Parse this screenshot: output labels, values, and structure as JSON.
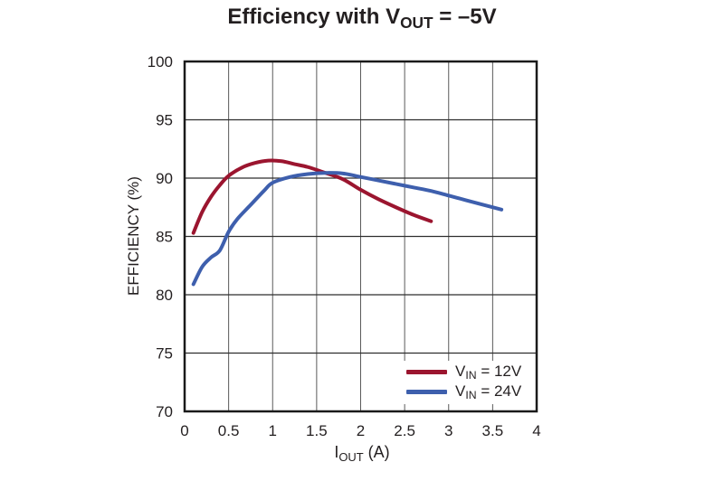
{
  "title": {
    "pre": "Efficiency with V",
    "sub": "OUT",
    "post": " = –5V"
  },
  "axes": {
    "y_label": "EFFICIENCY (%)",
    "x_label": {
      "pre": "I",
      "sub": "OUT",
      "post": " (A)"
    }
  },
  "legend": {
    "items": [
      {
        "pre": "V",
        "sub": "IN",
        "post": " = 12V",
        "color": "#9b152f"
      },
      {
        "pre": "V",
        "sub": "IN",
        "post": " = 24V",
        "color": "#3e5fad"
      }
    ]
  },
  "colors": {
    "series_12v": "#9b152f",
    "series_24v": "#3e5fad",
    "frame": "#1a1a1a",
    "grid_horizontal": "#2e2e2e",
    "grid_vertical": "#5a5a5a",
    "text": "#231f20",
    "background": "#ffffff"
  },
  "chart_data": {
    "type": "line",
    "title": "Efficiency with VOUT = –5V",
    "xlabel": "IOUT (A)",
    "ylabel": "EFFICIENCY (%)",
    "xlim": [
      0,
      4
    ],
    "ylim": [
      70,
      100
    ],
    "x_ticks": [
      0,
      0.5,
      1,
      1.5,
      2,
      2.5,
      3,
      3.5,
      4
    ],
    "y_ticks": [
      70,
      75,
      80,
      85,
      90,
      95,
      100
    ],
    "grid": true,
    "legend_position": "lower-right",
    "series": [
      {
        "name": "VIN = 12V",
        "color": "#9b152f",
        "points": [
          [
            0.1,
            85.3
          ],
          [
            0.2,
            87.1
          ],
          [
            0.3,
            88.4
          ],
          [
            0.4,
            89.4
          ],
          [
            0.5,
            90.2
          ],
          [
            0.65,
            90.9
          ],
          [
            0.8,
            91.3
          ],
          [
            0.95,
            91.5
          ],
          [
            1.1,
            91.45
          ],
          [
            1.25,
            91.2
          ],
          [
            1.4,
            90.95
          ],
          [
            1.6,
            90.45
          ],
          [
            1.8,
            89.9
          ],
          [
            2.0,
            89.0
          ],
          [
            2.2,
            88.2
          ],
          [
            2.4,
            87.5
          ],
          [
            2.6,
            86.85
          ],
          [
            2.8,
            86.3
          ]
        ]
      },
      {
        "name": "VIN = 24V",
        "color": "#3e5fad",
        "points": [
          [
            0.1,
            80.9
          ],
          [
            0.2,
            82.4
          ],
          [
            0.3,
            83.2
          ],
          [
            0.4,
            83.8
          ],
          [
            0.5,
            85.4
          ],
          [
            0.6,
            86.5
          ],
          [
            0.75,
            87.7
          ],
          [
            0.9,
            88.9
          ],
          [
            1.0,
            89.6
          ],
          [
            1.2,
            90.1
          ],
          [
            1.4,
            90.35
          ],
          [
            1.6,
            90.45
          ],
          [
            1.8,
            90.4
          ],
          [
            2.0,
            90.1
          ],
          [
            2.2,
            89.8
          ],
          [
            2.4,
            89.5
          ],
          [
            2.6,
            89.2
          ],
          [
            2.8,
            88.9
          ],
          [
            3.0,
            88.5
          ],
          [
            3.2,
            88.1
          ],
          [
            3.4,
            87.7
          ],
          [
            3.6,
            87.3
          ]
        ]
      }
    ]
  }
}
